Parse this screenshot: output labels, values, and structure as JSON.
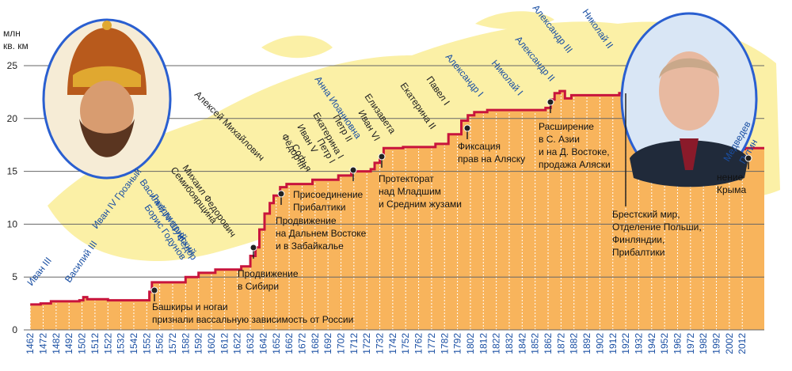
{
  "chart_data": {
    "type": "line",
    "step": "post",
    "fill_area": true,
    "color": "#c8143c",
    "area_color": "#f8b45c",
    "ylabel": [
      "млн",
      "кв. км"
    ],
    "x": [
      1462,
      1470,
      1478,
      1500,
      1503,
      1506,
      1522,
      1552,
      1554,
      1556,
      1582,
      1592,
      1605,
      1625,
      1632,
      1636,
      1639,
      1643,
      1647,
      1650,
      1655,
      1660,
      1680,
      1700,
      1710,
      1725,
      1728,
      1732,
      1735,
      1750,
      1775,
      1785,
      1795,
      1800,
      1805,
      1815,
      1860,
      1864,
      1867,
      1871,
      1875,
      1880,
      1917,
      1920,
      1990,
      1992,
      2014,
      2024
    ],
    "values": [
      2.4,
      2.5,
      2.7,
      2.8,
      3.1,
      2.9,
      2.8,
      2.8,
      3.6,
      4.5,
      5.0,
      5.4,
      5.7,
      6.0,
      7.0,
      7.8,
      9.5,
      11.0,
      12.0,
      12.7,
      13.5,
      13.8,
      14.2,
      14.6,
      15.0,
      15.2,
      15.8,
      16.4,
      17.2,
      17.3,
      17.6,
      18.5,
      19.8,
      20.3,
      20.6,
      20.8,
      21.0,
      21.8,
      22.4,
      22.6,
      21.9,
      22.2,
      22.4,
      21.5,
      22.4,
      17.1,
      17.2,
      17.2
    ],
    "xlim": [
      1457,
      2029
    ],
    "ylim": [
      0,
      25
    ],
    "xticks": [
      1462,
      1472,
      1482,
      1492,
      1502,
      1512,
      1522,
      1532,
      1542,
      1552,
      1562,
      1572,
      1582,
      1592,
      1602,
      1612,
      1622,
      1632,
      1642,
      1652,
      1662,
      1672,
      1682,
      1692,
      1702,
      1712,
      1722,
      1732,
      1742,
      1752,
      1762,
      1772,
      1782,
      1792,
      1802,
      1812,
      1822,
      1832,
      1842,
      1852,
      1862,
      1872,
      1882,
      1892,
      1902,
      1912,
      1922,
      1932,
      1942,
      1952,
      1962,
      1972,
      1982,
      1992,
      2002,
      2012
    ],
    "yticks": [
      0,
      5,
      10,
      15,
      20,
      25
    ],
    "grid": true,
    "rulers": [
      {
        "name": "Иван III",
        "color": "#1a4fa3"
      },
      {
        "name": "Василий III",
        "color": "#1a4fa3"
      },
      {
        "name": "Иван IV Грозный",
        "color": "#1a4fa3"
      },
      {
        "name": "Фёдор",
        "color": "#1a4fa3"
      },
      {
        "name": "Борис Годунов",
        "color": "#1a4fa3"
      },
      {
        "name": "Лжедмитрий",
        "color": "#1a4fa3"
      },
      {
        "name": "Василий IV Шуйский",
        "color": "#1a4fa3"
      },
      {
        "name": "Семибоярщина",
        "color": "#222222"
      },
      {
        "name": "Михаил Федорович",
        "color": "#222222"
      },
      {
        "name": "Алексей Михайлович",
        "color": "#222222"
      },
      {
        "name": "Фёдор III",
        "color": "#222222"
      },
      {
        "name": "Софья",
        "color": "#222222"
      },
      {
        "name": "Иван V",
        "color": "#222222"
      },
      {
        "name": "Петр I",
        "color": "#222222"
      },
      {
        "name": "Екатерина I",
        "color": "#222222"
      },
      {
        "name": "Петр II",
        "color": "#222222"
      },
      {
        "name": "Анна Иоанновна",
        "color": "#1a4fa3"
      },
      {
        "name": "Иван VI",
        "color": "#222222"
      },
      {
        "name": "Елизавета",
        "color": "#222222"
      },
      {
        "name": "Екатерина II",
        "color": "#222222"
      },
      {
        "name": "Павел I",
        "color": "#222222"
      },
      {
        "name": "Александр I",
        "color": "#1a4fa3"
      },
      {
        "name": "Николай I",
        "color": "#1a4fa3"
      },
      {
        "name": "Александр II",
        "color": "#1a4fa3"
      },
      {
        "name": "Александр III",
        "color": "#1a4fa3"
      },
      {
        "name": "Николай II",
        "color": "#1a4fa3"
      },
      {
        "name": "Медведев",
        "color": "#1a4fa3"
      },
      {
        "name": "Путин",
        "color": "#1a4fa3"
      }
    ],
    "annotations": [
      [
        "Башкиры и ногаи",
        "признали вассальную зависимость от России"
      ],
      [
        "Продвижение",
        "в Сибири"
      ],
      [
        "Продвижение",
        "на Дальнем Востоке",
        "и в Забайкалье"
      ],
      [
        "Присоединение",
        "Прибалтики"
      ],
      [
        "Протекторат",
        "над Младшим",
        "и Средним жузами"
      ],
      [
        "Фиксация",
        "прав на Аляску"
      ],
      [
        "Расширение",
        "в С. Азии",
        "и на Д. Востоке,",
        "продажа Аляски"
      ],
      [
        "Брестский мир,",
        "Отделение Польши,",
        "Финляндии,",
        "Прибалтики"
      ],
      [
        "нение",
        "Крыма"
      ]
    ]
  }
}
